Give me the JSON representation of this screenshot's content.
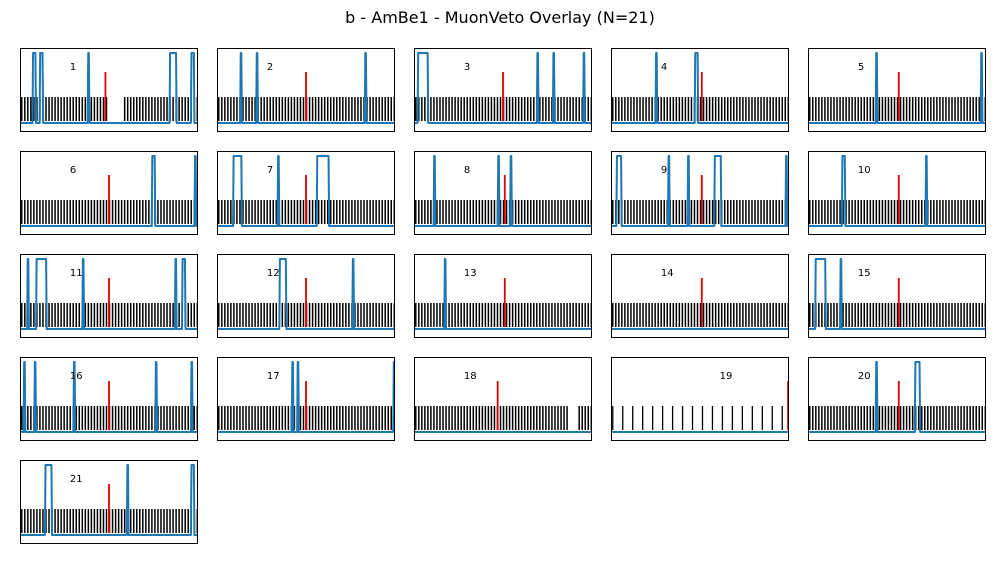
{
  "page": {
    "title": "b - AmBe1 - MuonVeto Overlay (N=21)"
  },
  "colors": {
    "pmt_trace": "#1f77b4",
    "sync_ticks": "#000000",
    "trigger": "#dd0000",
    "frame": "#000000"
  },
  "chart_data": {
    "type": "line",
    "title": "b - AmBe1 - MuonVeto Overlay (N=21)",
    "layout": "5-column small multiples, 21 panels, no axis ticks",
    "grid": false,
    "legend": "none",
    "x_range": [
      0,
      1
    ],
    "y_range": [
      0,
      1
    ],
    "panels": [
      {
        "label": "1",
        "label_x": 0.28,
        "trigger_x": 0.48,
        "tick_spacing": 0.017,
        "tick_gaps": [
          [
            0.5,
            0.58
          ]
        ],
        "pulses": [
          [
            0.07,
            0.09
          ],
          [
            0.11,
            0.13
          ],
          [
            0.38,
            0.39
          ],
          [
            0.84,
            0.88
          ],
          [
            0.96,
            0.98
          ]
        ]
      },
      {
        "label": "2",
        "label_x": 0.28,
        "trigger_x": 0.5,
        "tick_spacing": 0.017,
        "pulses": [
          [
            0.13,
            0.14
          ],
          [
            0.22,
            0.23
          ],
          [
            0.83,
            0.84
          ]
        ]
      },
      {
        "label": "3",
        "label_x": 0.28,
        "trigger_x": 0.5,
        "tick_spacing": 0.017,
        "pulses": [
          [
            0.02,
            0.08
          ],
          [
            0.69,
            0.7
          ],
          [
            0.78,
            0.79
          ],
          [
            0.95,
            0.96
          ]
        ]
      },
      {
        "label": "4",
        "label_x": 0.28,
        "trigger_x": 0.51,
        "tick_spacing": 0.017,
        "pulses": [
          [
            0.25,
            0.26
          ],
          [
            0.47,
            0.49
          ]
        ]
      },
      {
        "label": "5",
        "label_x": 0.28,
        "trigger_x": 0.51,
        "tick_spacing": 0.017,
        "pulses": [
          [
            0.38,
            0.39
          ],
          [
            0.97,
            0.98
          ]
        ]
      },
      {
        "label": "6",
        "label_x": 0.28,
        "trigger_x": 0.5,
        "tick_spacing": 0.017,
        "pulses": [
          [
            0.74,
            0.76
          ],
          [
            0.98,
            0.99
          ]
        ]
      },
      {
        "label": "7",
        "label_x": 0.28,
        "trigger_x": 0.5,
        "tick_spacing": 0.017,
        "pulses": [
          [
            0.09,
            0.14
          ],
          [
            0.34,
            0.35
          ],
          [
            0.56,
            0.63
          ]
        ]
      },
      {
        "label": "8",
        "label_x": 0.28,
        "trigger_x": 0.51,
        "tick_spacing": 0.017,
        "pulses": [
          [
            0.11,
            0.12
          ],
          [
            0.47,
            0.48
          ],
          [
            0.54,
            0.55
          ]
        ]
      },
      {
        "label": "9",
        "label_x": 0.28,
        "trigger_x": 0.51,
        "tick_spacing": 0.017,
        "pulses": [
          [
            0.03,
            0.06
          ],
          [
            0.32,
            0.33
          ],
          [
            0.43,
            0.44
          ],
          [
            0.58,
            0.62
          ],
          [
            0.98,
            0.99
          ]
        ]
      },
      {
        "label": "10",
        "label_x": 0.28,
        "trigger_x": 0.51,
        "tick_spacing": 0.017,
        "pulses": [
          [
            0.19,
            0.21
          ],
          [
            0.66,
            0.67
          ]
        ]
      },
      {
        "label": "11",
        "label_x": 0.28,
        "trigger_x": 0.5,
        "tick_spacing": 0.017,
        "pulses": [
          [
            0.04,
            0.05
          ],
          [
            0.09,
            0.15
          ],
          [
            0.35,
            0.36
          ],
          [
            0.87,
            0.88
          ],
          [
            0.91,
            0.93
          ]
        ]
      },
      {
        "label": "12",
        "label_x": 0.28,
        "trigger_x": 0.5,
        "tick_spacing": 0.017,
        "pulses": [
          [
            0.35,
            0.39
          ],
          [
            0.76,
            0.77
          ]
        ]
      },
      {
        "label": "13",
        "label_x": 0.28,
        "trigger_x": 0.51,
        "tick_spacing": 0.017,
        "pulses": [
          [
            0.17,
            0.18
          ]
        ]
      },
      {
        "label": "14",
        "label_x": 0.28,
        "trigger_x": 0.51,
        "tick_spacing": 0.017,
        "pulses": []
      },
      {
        "label": "15",
        "label_x": 0.28,
        "trigger_x": 0.51,
        "tick_spacing": 0.017,
        "pulses": [
          [
            0.04,
            0.1
          ],
          [
            0.18,
            0.19
          ]
        ]
      },
      {
        "label": "16",
        "label_x": 0.28,
        "trigger_x": 0.5,
        "tick_spacing": 0.017,
        "pulses": [
          [
            0.02,
            0.03
          ],
          [
            0.08,
            0.09
          ],
          [
            0.3,
            0.31
          ],
          [
            0.76,
            0.77
          ],
          [
            0.96,
            0.97
          ]
        ]
      },
      {
        "label": "17",
        "label_x": 0.28,
        "trigger_x": 0.5,
        "tick_spacing": 0.017,
        "pulses": [
          [
            0.42,
            0.43
          ],
          [
            0.45,
            0.46
          ],
          [
            0.99,
            1.0
          ]
        ]
      },
      {
        "label": "18",
        "label_x": 0.28,
        "trigger_x": 0.47,
        "tick_spacing": 0.017,
        "tick_gaps": [
          [
            0.87,
            0.92
          ]
        ],
        "pulses": []
      },
      {
        "label": "19",
        "label_x": 0.61,
        "trigger_x": 0.995,
        "tick_spacing": 0.056,
        "pulses": []
      },
      {
        "label": "20",
        "label_x": 0.28,
        "trigger_x": 0.51,
        "tick_spacing": 0.017,
        "pulses": [
          [
            0.38,
            0.39
          ],
          [
            0.6,
            0.63
          ]
        ]
      },
      {
        "label": "21",
        "label_x": 0.28,
        "trigger_x": 0.5,
        "tick_spacing": 0.017,
        "pulses": [
          [
            0.14,
            0.18
          ],
          [
            0.6,
            0.61
          ],
          [
            0.96,
            0.98
          ]
        ]
      }
    ]
  }
}
